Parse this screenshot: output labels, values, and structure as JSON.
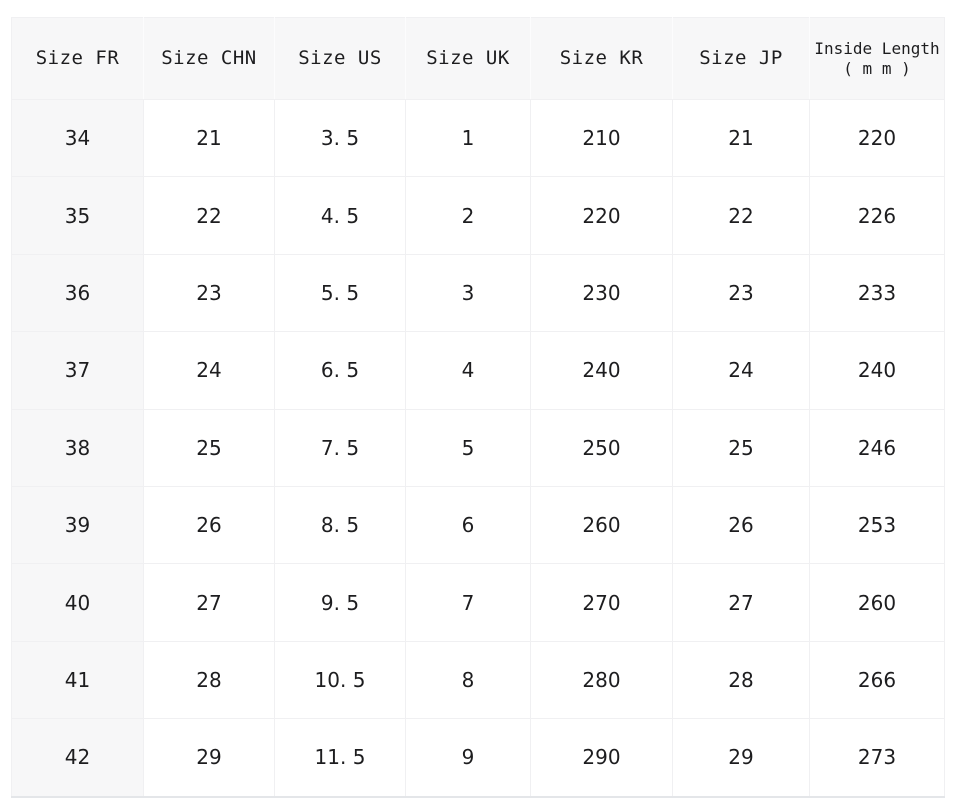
{
  "table": {
    "name": "shoe-size-conversion-table",
    "columns": [
      {
        "label": "Size FR"
      },
      {
        "label": "Size CHN"
      },
      {
        "label": "Size US"
      },
      {
        "label": "Size UK"
      },
      {
        "label": "Size KR"
      },
      {
        "label": "Size JP"
      },
      {
        "label": "Inside Length",
        "sublabel": "( m m )"
      }
    ],
    "rows": [
      [
        "34",
        "21",
        "3. 5",
        "1",
        "210",
        "21",
        "220"
      ],
      [
        "35",
        "22",
        "4. 5",
        "2",
        "220",
        "22",
        "226"
      ],
      [
        "36",
        "23",
        "5. 5",
        "3",
        "230",
        "23",
        "233"
      ],
      [
        "37",
        "24",
        "6. 5",
        "4",
        "240",
        "24",
        "240"
      ],
      [
        "38",
        "25",
        "7. 5",
        "5",
        "250",
        "25",
        "246"
      ],
      [
        "39",
        "26",
        "8. 5",
        "6",
        "260",
        "26",
        "253"
      ],
      [
        "40",
        "27",
        "9. 5",
        "7",
        "270",
        "27",
        "260"
      ],
      [
        "41",
        "28",
        "10. 5",
        "8",
        "280",
        "28",
        "266"
      ],
      [
        "42",
        "29",
        "11. 5",
        "9",
        "290",
        "29",
        "273"
      ]
    ],
    "colors": {
      "header_bg": "#f7f7f8",
      "first_column_bg": "#f7f7f8",
      "row_bg": "#ffffff",
      "grid_line": "#f0f0f2",
      "header_divider": "#fcfcfd",
      "bottom_border": "#e4e6e9",
      "text": "#1d1d1f"
    }
  },
  "chart_data": {
    "type": "table",
    "columns": [
      "Size FR",
      "Size CHN",
      "Size US",
      "Size UK",
      "Size KR",
      "Size JP",
      "Inside Length (mm)"
    ],
    "rows": [
      [
        34,
        21,
        3.5,
        1,
        210,
        21,
        220
      ],
      [
        35,
        22,
        4.5,
        2,
        220,
        22,
        226
      ],
      [
        36,
        23,
        5.5,
        3,
        230,
        23,
        233
      ],
      [
        37,
        24,
        6.5,
        4,
        240,
        24,
        240
      ],
      [
        38,
        25,
        7.5,
        5,
        250,
        25,
        246
      ],
      [
        39,
        26,
        8.5,
        6,
        260,
        26,
        253
      ],
      [
        40,
        27,
        9.5,
        7,
        270,
        27,
        260
      ],
      [
        41,
        28,
        10.5,
        8,
        280,
        28,
        266
      ],
      [
        42,
        29,
        11.5,
        9,
        290,
        29,
        273
      ]
    ]
  }
}
